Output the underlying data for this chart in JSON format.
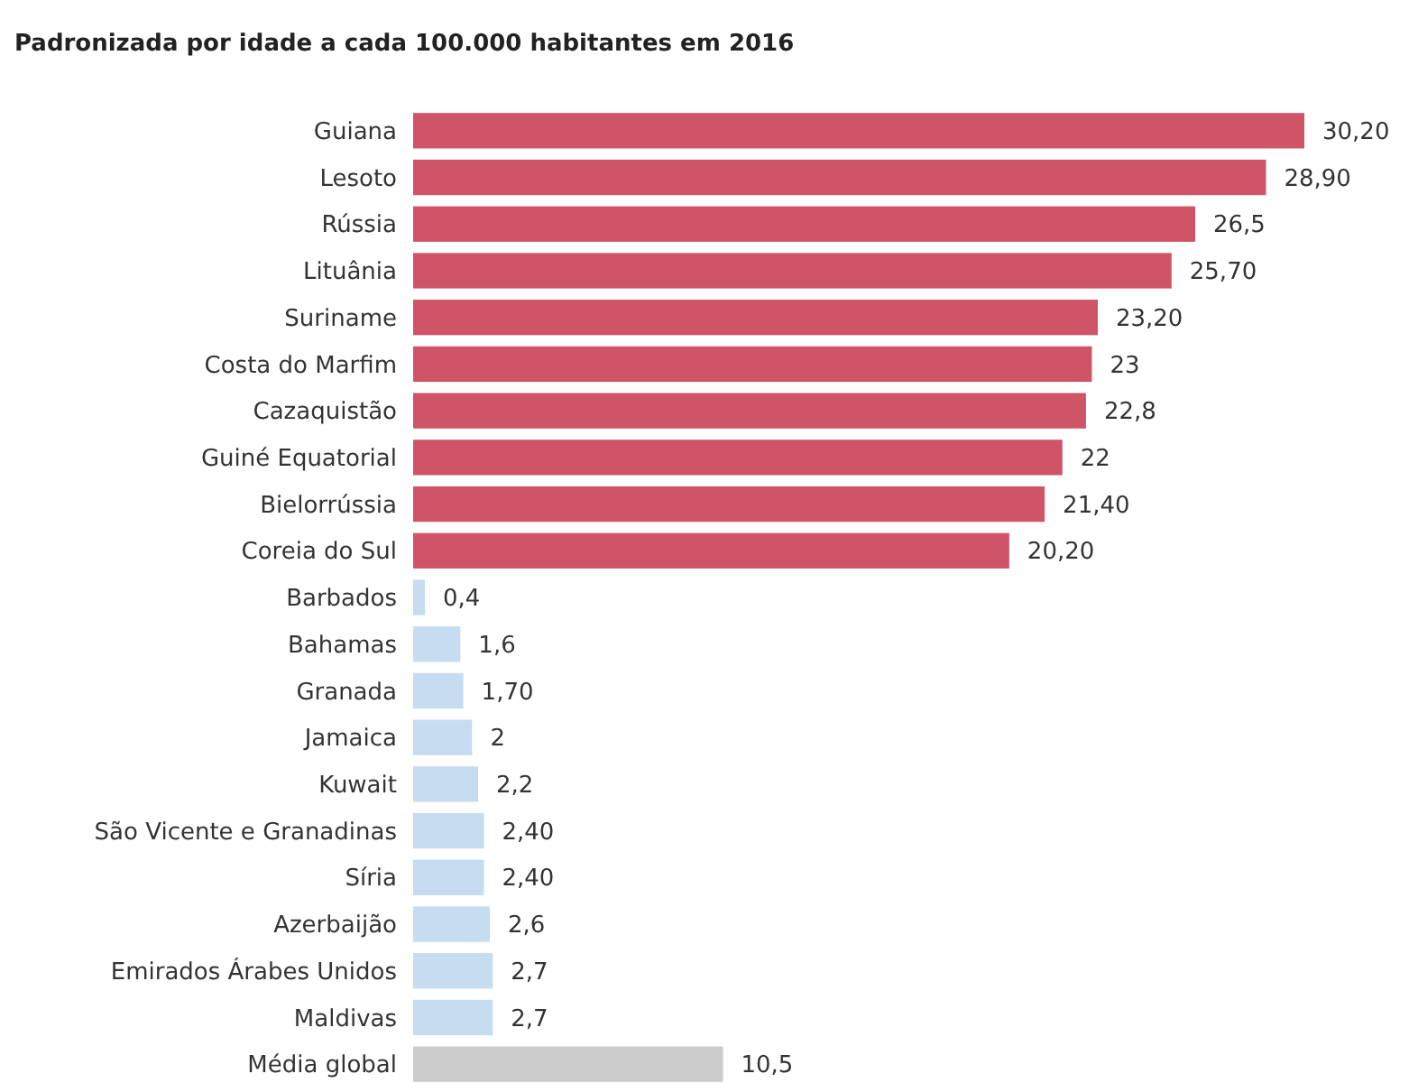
{
  "chart_data": {
    "type": "bar",
    "orientation": "horizontal",
    "title": "Padronizada por idade a cada 100.000 habitantes em 2016",
    "categories": [
      "Guiana",
      "Lesoto",
      "Rússia",
      "Lituânia",
      "Suriname",
      "Costa do Marfim",
      "Cazaquistão",
      "Guiné Equatorial",
      "Bielorrússia",
      "Coreia do Sul",
      "Barbados",
      "Bahamas",
      "Granada",
      "Jamaica",
      "Kuwait",
      "São Vicente e Granadinas",
      "Síria",
      "Azerbaijão",
      "Emirados Árabes Unidos",
      "Maldivas",
      "Média global"
    ],
    "values": [
      30.2,
      28.9,
      26.5,
      25.7,
      23.2,
      23,
      22.8,
      22,
      21.4,
      20.2,
      0.4,
      1.6,
      1.7,
      2,
      2.2,
      2.4,
      2.4,
      2.6,
      2.7,
      2.7,
      10.5
    ],
    "value_labels": [
      "30,20",
      "28,90",
      "26,5",
      "25,70",
      "23,20",
      "23",
      "22,8",
      "22",
      "21,40",
      "20,20",
      "0,4",
      "1,6",
      "1,70",
      "2",
      "2,2",
      "2,40",
      "2,40",
      "2,6",
      "2,7",
      "2,7",
      "10,5"
    ],
    "colors": [
      "#d05468",
      "#d05468",
      "#d05468",
      "#d05468",
      "#d05468",
      "#d05468",
      "#d05468",
      "#d05468",
      "#d05468",
      "#d05468",
      "#c6dcf1",
      "#c6dcf1",
      "#c6dcf1",
      "#c6dcf1",
      "#c6dcf1",
      "#c6dcf1",
      "#c6dcf1",
      "#c6dcf1",
      "#c6dcf1",
      "#c6dcf1",
      "#cbcbcb"
    ]
  }
}
